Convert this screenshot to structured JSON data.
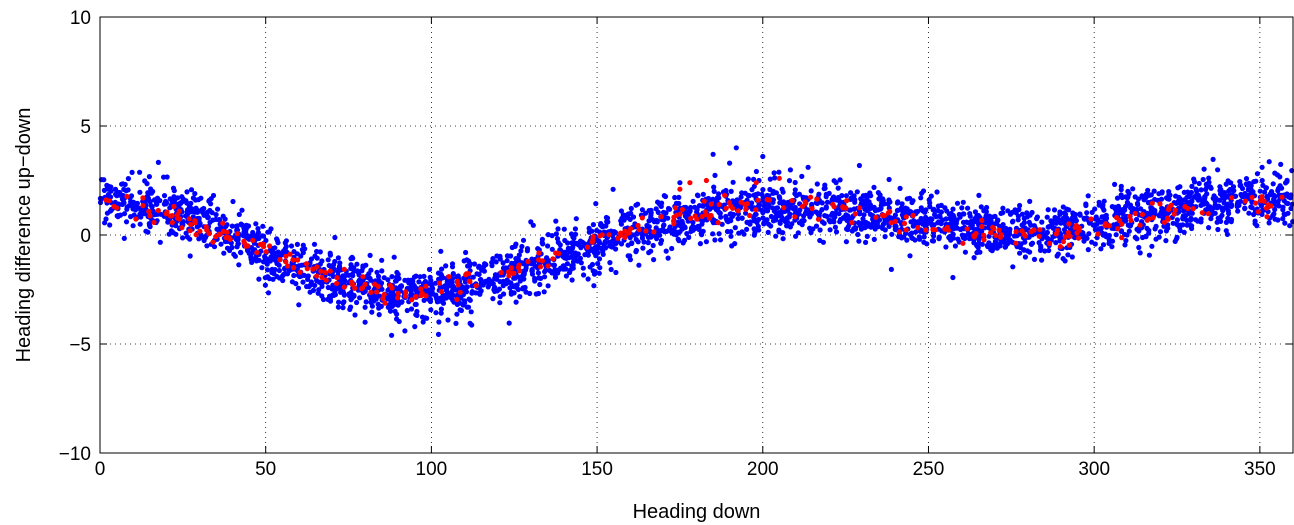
{
  "chart_data": {
    "type": "scatter",
    "title": "",
    "xlabel": "Heading down",
    "ylabel": "Heading difference up−down",
    "xlim": [
      0,
      360
    ],
    "ylim": [
      -10,
      10
    ],
    "xticks": [
      0,
      50,
      100,
      150,
      200,
      250,
      300,
      350
    ],
    "yticks": [
      -10,
      -5,
      0,
      5,
      10
    ],
    "xtick_labels": [
      "0",
      "50",
      "100",
      "150",
      "200",
      "250",
      "300",
      "350"
    ],
    "ytick_labels": [
      "−10",
      "−5",
      "0",
      "5",
      "10"
    ],
    "grid": true,
    "series": [
      {
        "color": "#0000ff",
        "trend": [
          [
            0,
            1.5
          ],
          [
            10,
            1.5
          ],
          [
            20,
            1.2
          ],
          [
            30,
            0.6
          ],
          [
            40,
            0.0
          ],
          [
            50,
            -0.8
          ],
          [
            60,
            -1.4
          ],
          [
            70,
            -2.0
          ],
          [
            80,
            -2.4
          ],
          [
            90,
            -2.7
          ],
          [
            100,
            -2.7
          ],
          [
            110,
            -2.4
          ],
          [
            120,
            -1.9
          ],
          [
            130,
            -1.4
          ],
          [
            140,
            -0.9
          ],
          [
            150,
            -0.4
          ],
          [
            160,
            0.1
          ],
          [
            170,
            0.5
          ],
          [
            180,
            0.9
          ],
          [
            190,
            1.1
          ],
          [
            200,
            1.2
          ],
          [
            210,
            1.2
          ],
          [
            220,
            1.2
          ],
          [
            230,
            1.0
          ],
          [
            240,
            0.8
          ],
          [
            250,
            0.6
          ],
          [
            260,
            0.4
          ],
          [
            270,
            0.2
          ],
          [
            280,
            0.1
          ],
          [
            290,
            0.2
          ],
          [
            300,
            0.4
          ],
          [
            310,
            0.8
          ],
          [
            320,
            1.1
          ],
          [
            330,
            1.4
          ],
          [
            340,
            1.6
          ],
          [
            350,
            1.7
          ],
          [
            360,
            1.7
          ]
        ],
        "spread": 0.6,
        "count": 3200,
        "outliers": [
          [
            192,
            4.0
          ],
          [
            200,
            3.6
          ],
          [
            185,
            3.7
          ],
          [
            190,
            3.3
          ],
          [
            88,
            -4.6
          ],
          [
            92,
            -4.4
          ],
          [
            95,
            -4.2
          ],
          [
            80,
            -4.0
          ],
          [
            105,
            -3.9
          ],
          [
            60,
            -3.2
          ],
          [
            130,
            0.6
          ],
          [
            175,
            2.4
          ]
        ]
      },
      {
        "color": "#ff0000",
        "trend": [
          [
            0,
            1.3
          ],
          [
            10,
            1.2
          ],
          [
            20,
            0.9
          ],
          [
            30,
            0.4
          ],
          [
            40,
            -0.1
          ],
          [
            50,
            -0.8
          ],
          [
            60,
            -1.4
          ],
          [
            70,
            -2.0
          ],
          [
            80,
            -2.4
          ],
          [
            90,
            -2.6
          ],
          [
            100,
            -2.5
          ],
          [
            110,
            -2.2
          ],
          [
            120,
            -1.8
          ],
          [
            130,
            -1.3
          ],
          [
            140,
            -0.7
          ],
          [
            150,
            -0.2
          ],
          [
            160,
            0.3
          ],
          [
            170,
            0.7
          ],
          [
            180,
            1.0
          ],
          [
            190,
            1.2
          ],
          [
            200,
            1.3
          ],
          [
            210,
            1.3
          ],
          [
            220,
            1.2
          ],
          [
            230,
            1.0
          ],
          [
            240,
            0.7
          ],
          [
            250,
            0.4
          ],
          [
            260,
            0.2
          ],
          [
            270,
            0.0
          ],
          [
            280,
            0.0
          ],
          [
            290,
            0.1
          ],
          [
            300,
            0.3
          ],
          [
            310,
            0.7
          ],
          [
            320,
            1.0
          ],
          [
            330,
            1.3
          ],
          [
            340,
            1.5
          ],
          [
            350,
            1.5
          ],
          [
            360,
            1.4
          ]
        ],
        "spread": 0.25,
        "count": 320,
        "outliers": [
          [
            178,
            2.4
          ],
          [
            183,
            2.5
          ],
          [
            198,
            2.4
          ],
          [
            205,
            2.6
          ],
          [
            175,
            2.1
          ]
        ]
      }
    ]
  }
}
